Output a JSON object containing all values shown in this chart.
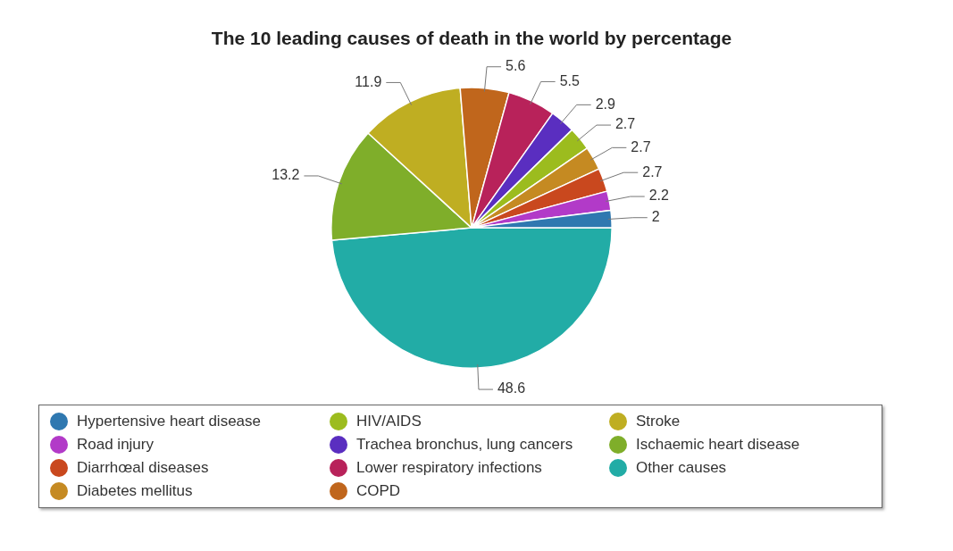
{
  "chart_data": {
    "type": "pie",
    "title": "The 10 leading causes of death in the world by percentage",
    "categories": [
      "Hypertensive heart disease",
      "Road injury",
      "Diarrhœal diseases",
      "Diabetes mellitus",
      "HIV/AIDS",
      "Trachea bronchus, lung cancers",
      "Lower respiratory infections",
      "COPD",
      "Stroke",
      "Ischaemic heart disease",
      "Other causes"
    ],
    "values": [
      2,
      2.2,
      2.7,
      2.7,
      2.7,
      2.9,
      5.5,
      5.6,
      11.9,
      13.2,
      48.6
    ],
    "colors": [
      "#2f78b0",
      "#b23ac8",
      "#c9481e",
      "#c58a22",
      "#9cbc1e",
      "#5a2ec0",
      "#b8225a",
      "#c0661c",
      "#bfae22",
      "#7fae2a",
      "#22aca6"
    ],
    "data_labels": true,
    "legend": "bottom"
  }
}
